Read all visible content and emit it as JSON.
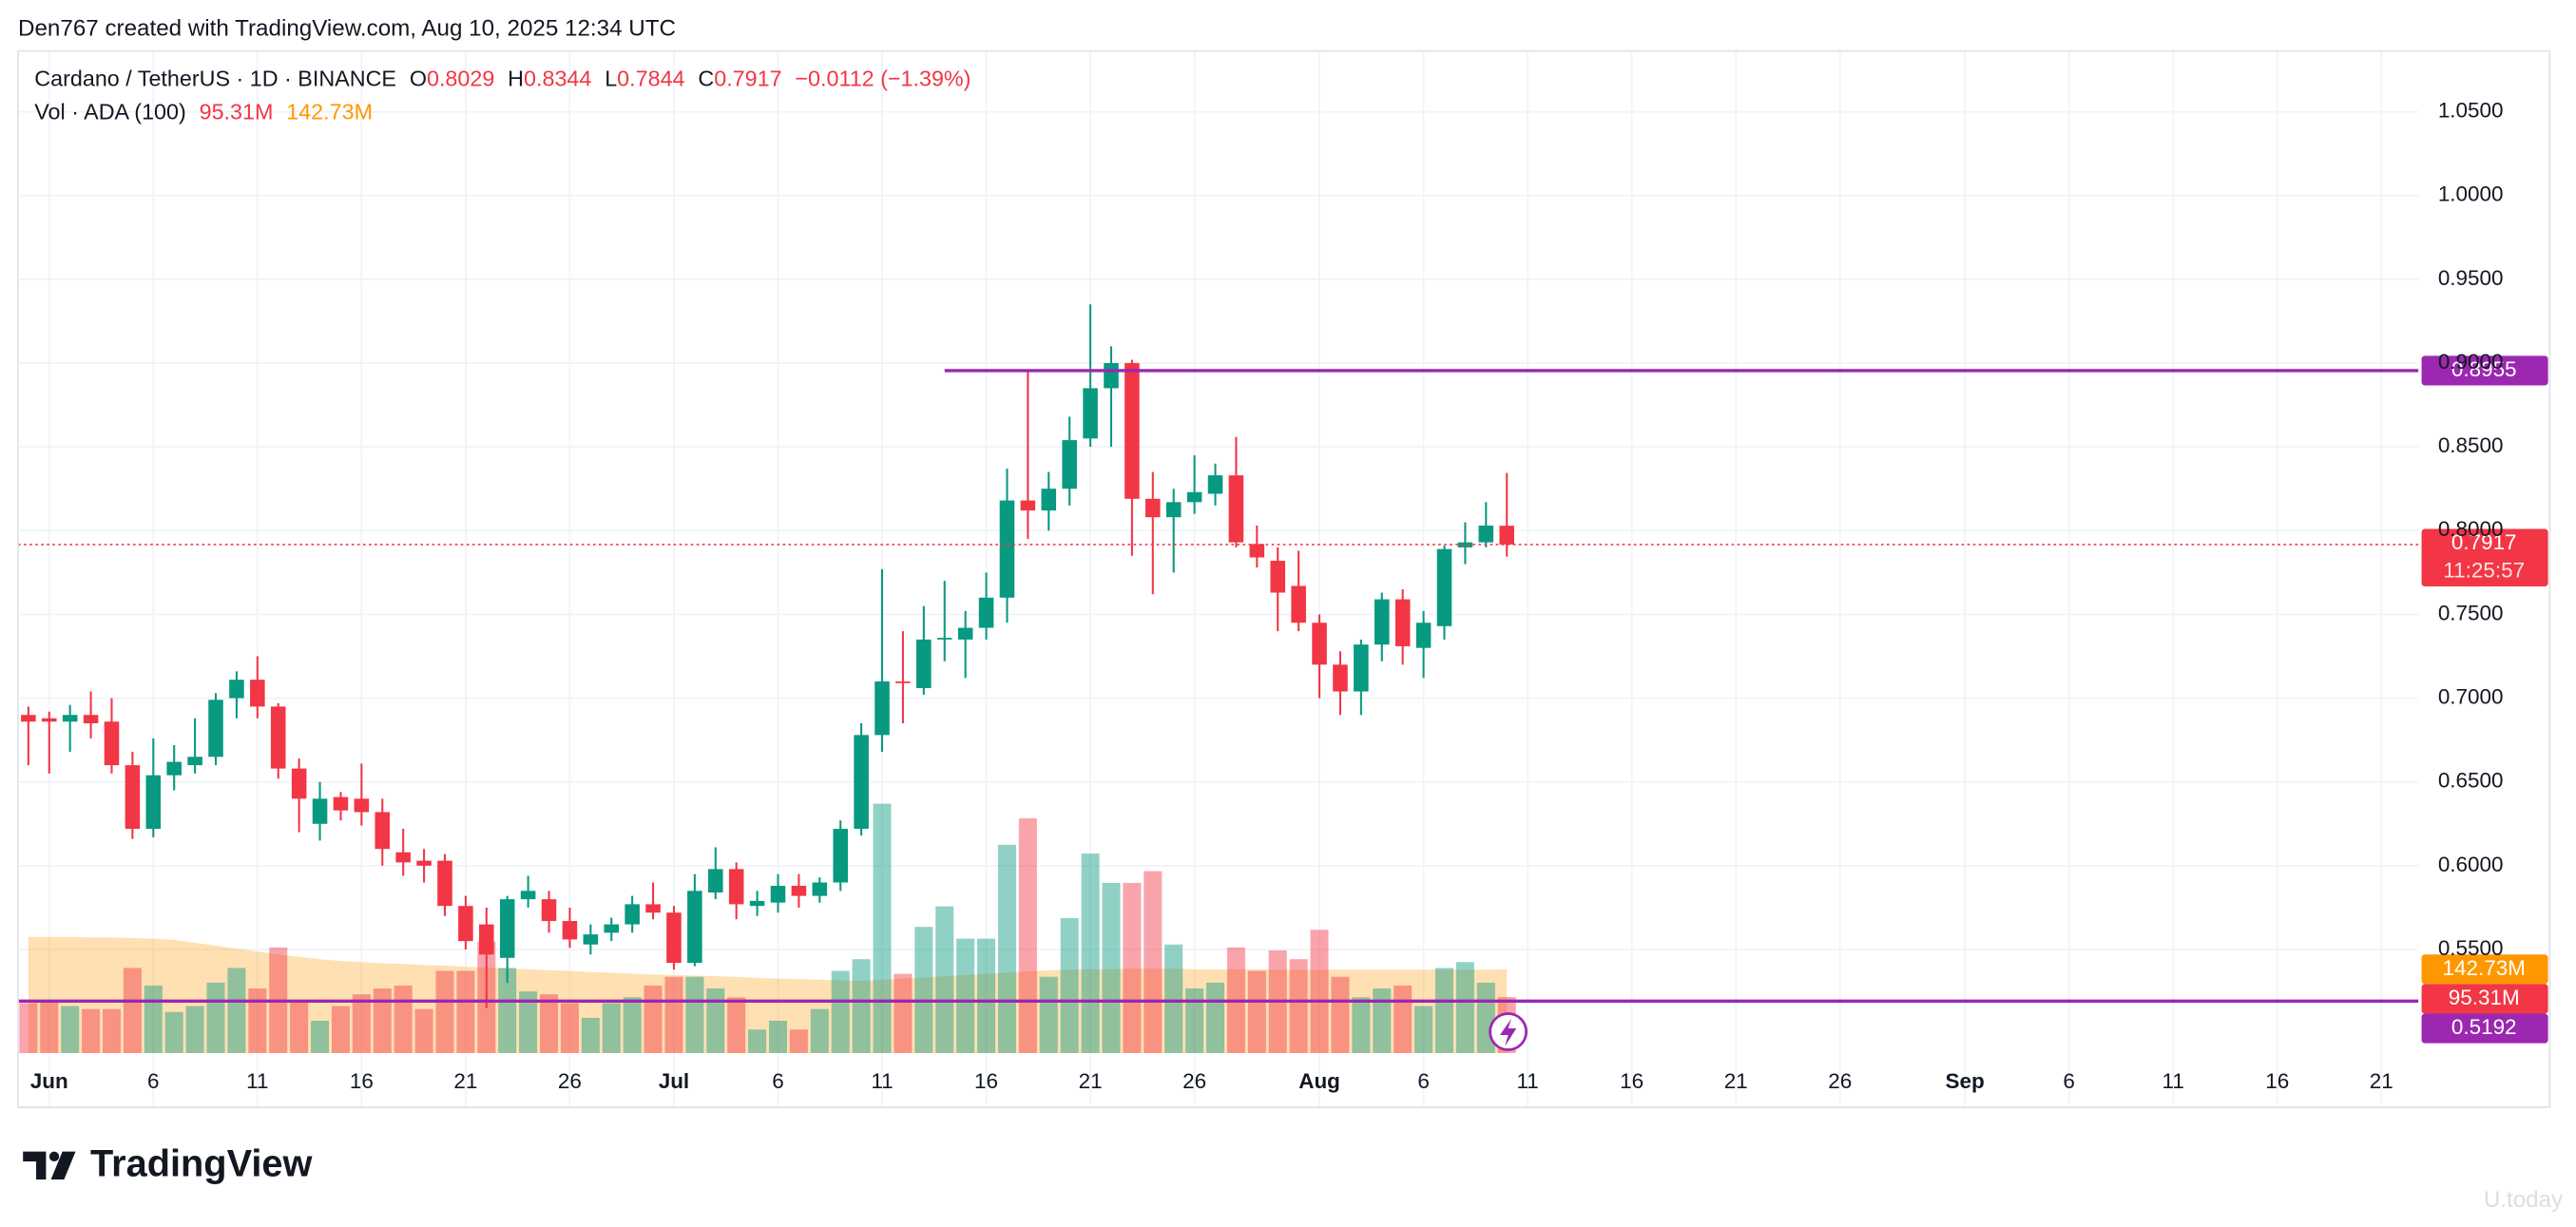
{
  "credit": "Den767 created with TradingView.com, Aug 10, 2025 12:34 UTC",
  "logo": "TradingView",
  "watermark": "U.today",
  "chart_data": {
    "type": "candlestick",
    "symbol": "Cardano / TetherUS · 1D · BINANCE",
    "ohlc_labels": [
      "O",
      "H",
      "L",
      "C"
    ],
    "change": "−0.0112 (−1.39%)",
    "x": [
      "May 31",
      "Jun 1",
      "Jun 2",
      "Jun 3",
      "Jun 4",
      "Jun 5",
      "Jun 6",
      "Jun 7",
      "Jun 8",
      "Jun 9",
      "Jun 10",
      "Jun 11",
      "Jun 12",
      "Jun 13",
      "Jun 14",
      "Jun 15",
      "Jun 16",
      "Jun 17",
      "Jun 18",
      "Jun 19",
      "Jun 20",
      "Jun 21",
      "Jun 22",
      "Jun 23",
      "Jun 24",
      "Jun 25",
      "Jun 26",
      "Jun 27",
      "Jun 28",
      "Jun 29",
      "Jun 30",
      "Jul 1",
      "Jul 2",
      "Jul 3",
      "Jul 4",
      "Jul 5",
      "Jul 6",
      "Jul 7",
      "Jul 8",
      "Jul 9",
      "Jul 10",
      "Jul 11",
      "Jul 12",
      "Jul 13",
      "Jul 14",
      "Jul 15",
      "Jul 16",
      "Jul 17",
      "Jul 18",
      "Jul 19",
      "Jul 20",
      "Jul 21",
      "Jul 22",
      "Jul 23",
      "Jul 24",
      "Jul 25",
      "Jul 26",
      "Jul 27",
      "Jul 28",
      "Jul 29",
      "Jul 30",
      "Jul 31",
      "Aug 1",
      "Aug 2",
      "Aug 3",
      "Aug 4",
      "Aug 5",
      "Aug 6",
      "Aug 7",
      "Aug 8",
      "Aug 9",
      "Aug 10"
    ],
    "open": [
      0.69,
      0.688,
      0.686,
      0.69,
      0.686,
      0.66,
      0.622,
      0.654,
      0.66,
      0.665,
      0.7,
      0.711,
      0.695,
      0.658,
      0.625,
      0.641,
      0.64,
      0.632,
      0.608,
      0.603,
      0.603,
      0.576,
      0.565,
      0.545,
      0.58,
      0.58,
      0.567,
      0.553,
      0.56,
      0.565,
      0.577,
      0.572,
      0.542,
      0.584,
      0.598,
      0.576,
      0.578,
      0.588,
      0.582,
      0.59,
      0.622,
      0.678,
      0.71,
      0.706,
      0.735,
      0.735,
      0.742,
      0.76,
      0.818,
      0.812,
      0.825,
      0.855,
      0.885,
      0.9,
      0.819,
      0.808,
      0.817,
      0.822,
      0.833,
      0.792,
      0.782,
      0.767,
      0.745,
      0.72,
      0.704,
      0.732,
      0.759,
      0.73,
      0.743,
      0.79,
      0.793,
      0.8029
    ],
    "high": [
      0.695,
      0.692,
      0.696,
      0.704,
      0.7,
      0.668,
      0.676,
      0.672,
      0.688,
      0.703,
      0.716,
      0.725,
      0.697,
      0.664,
      0.65,
      0.644,
      0.661,
      0.64,
      0.622,
      0.61,
      0.607,
      0.582,
      0.575,
      0.582,
      0.594,
      0.585,
      0.575,
      0.565,
      0.569,
      0.582,
      0.59,
      0.576,
      0.595,
      0.611,
      0.602,
      0.585,
      0.595,
      0.595,
      0.593,
      0.627,
      0.685,
      0.777,
      0.74,
      0.755,
      0.77,
      0.752,
      0.775,
      0.837,
      0.895,
      0.835,
      0.868,
      0.935,
      0.91,
      0.902,
      0.835,
      0.825,
      0.845,
      0.84,
      0.856,
      0.803,
      0.79,
      0.788,
      0.75,
      0.728,
      0.735,
      0.763,
      0.765,
      0.752,
      0.791,
      0.805,
      0.817,
      0.8344
    ],
    "low": [
      0.66,
      0.655,
      0.668,
      0.676,
      0.655,
      0.616,
      0.617,
      0.645,
      0.655,
      0.66,
      0.688,
      0.688,
      0.652,
      0.62,
      0.615,
      0.627,
      0.624,
      0.6,
      0.594,
      0.59,
      0.57,
      0.55,
      0.515,
      0.53,
      0.575,
      0.56,
      0.551,
      0.547,
      0.555,
      0.56,
      0.568,
      0.538,
      0.54,
      0.58,
      0.568,
      0.57,
      0.572,
      0.575,
      0.578,
      0.585,
      0.618,
      0.668,
      0.685,
      0.702,
      0.722,
      0.712,
      0.735,
      0.745,
      0.795,
      0.8,
      0.815,
      0.85,
      0.85,
      0.785,
      0.762,
      0.775,
      0.81,
      0.815,
      0.79,
      0.778,
      0.74,
      0.74,
      0.7,
      0.69,
      0.69,
      0.722,
      0.72,
      0.712,
      0.735,
      0.78,
      0.79,
      0.7844
    ],
    "close": [
      0.686,
      0.686,
      0.69,
      0.685,
      0.66,
      0.622,
      0.654,
      0.662,
      0.665,
      0.699,
      0.711,
      0.695,
      0.658,
      0.64,
      0.64,
      0.633,
      0.632,
      0.61,
      0.602,
      0.6,
      0.576,
      0.555,
      0.547,
      0.58,
      0.585,
      0.567,
      0.556,
      0.559,
      0.565,
      0.577,
      0.572,
      0.542,
      0.585,
      0.598,
      0.577,
      0.579,
      0.588,
      0.582,
      0.59,
      0.622,
      0.678,
      0.71,
      0.709,
      0.735,
      0.736,
      0.742,
      0.76,
      0.818,
      0.812,
      0.825,
      0.854,
      0.885,
      0.9,
      0.819,
      0.808,
      0.817,
      0.823,
      0.833,
      0.793,
      0.784,
      0.763,
      0.745,
      0.72,
      0.704,
      0.732,
      0.759,
      0.731,
      0.745,
      0.789,
      0.793,
      0.803,
      0.7917
    ],
    "up_color": "#089981",
    "down_color": "#f23645",
    "countdown": "11:25:57",
    "volume": {
      "name": "Vol · ADA (100)",
      "values": [
        85,
        90,
        80,
        75,
        75,
        145,
        115,
        70,
        80,
        120,
        145,
        110,
        180,
        90,
        55,
        80,
        100,
        110,
        115,
        75,
        140,
        140,
        190,
        145,
        105,
        100,
        85,
        60,
        85,
        95,
        115,
        130,
        130,
        110,
        95,
        40,
        55,
        40,
        75,
        140,
        160,
        425,
        135,
        215,
        250,
        195,
        195,
        355,
        400,
        130,
        230,
        340,
        290,
        290,
        310,
        185,
        110,
        120,
        180,
        140,
        175,
        160,
        210,
        130,
        95,
        110,
        115,
        80,
        145,
        155,
        120,
        95.31
      ],
      "last_label": "95.31M",
      "ma_values": [
        198,
        198,
        198,
        197,
        197,
        196,
        195,
        193,
        188,
        183,
        178,
        173,
        168,
        164,
        160,
        157,
        155,
        153,
        152,
        150,
        149,
        147,
        146,
        144,
        143,
        141,
        140,
        138,
        137,
        135,
        134,
        133,
        132,
        131,
        130,
        128,
        127,
        126,
        125,
        124,
        123,
        125,
        127,
        129,
        131,
        133,
        135,
        137,
        139,
        141,
        142,
        143,
        143,
        144,
        144,
        144,
        143,
        143,
        143,
        143,
        142,
        142,
        142,
        142,
        142,
        142,
        142,
        142,
        142,
        142,
        142,
        142.73
      ],
      "ma_last_label": "142.73M",
      "ma_color": "#ff9800",
      "ylim": [
        0,
        420
      ]
    },
    "levels": [
      {
        "value": 0.8955,
        "from": "Jul 14"
      },
      {
        "value": 0.5192
      }
    ],
    "level_color": "#9c27b0",
    "xlim": [
      "May 30",
      "Sep 23"
    ],
    "xticks": [
      {
        "value": "Jun 1",
        "label": "Jun"
      },
      {
        "value": "Jun 6",
        "label": "6"
      },
      {
        "value": "Jun 11",
        "label": "11"
      },
      {
        "value": "Jun 16",
        "label": "16"
      },
      {
        "value": "Jun 21",
        "label": "21"
      },
      {
        "value": "Jun 26",
        "label": "26"
      },
      {
        "value": "Jul 1",
        "label": "Jul"
      },
      {
        "value": "Jul 6",
        "label": "6"
      },
      {
        "value": "Jul 11",
        "label": "11"
      },
      {
        "value": "Jul 16",
        "label": "16"
      },
      {
        "value": "Jul 21",
        "label": "21"
      },
      {
        "value": "Jul 26",
        "label": "26"
      },
      {
        "value": "Aug 1",
        "label": "Aug"
      },
      {
        "value": "Aug 6",
        "label": "6"
      },
      {
        "value": "Aug 11",
        "label": "11"
      },
      {
        "value": "Aug 16",
        "label": "16"
      },
      {
        "value": "Aug 21",
        "label": "21"
      },
      {
        "value": "Aug 26",
        "label": "26"
      },
      {
        "value": "Sep 1",
        "label": "Sep"
      },
      {
        "value": "Sep 6",
        "label": "6"
      },
      {
        "value": "Sep 11",
        "label": "11"
      },
      {
        "value": "Sep 16",
        "label": "16"
      },
      {
        "value": "Sep 21",
        "label": "21"
      }
    ],
    "ylim": [
      0.4882,
      1.0863
    ],
    "yticks": [
      {
        "value": 0.55,
        "label": "0.5500"
      },
      {
        "value": 0.6,
        "label": "0.6000"
      },
      {
        "value": 0.65,
        "label": "0.6500"
      },
      {
        "value": 0.7,
        "label": "0.7000"
      },
      {
        "value": 0.75,
        "label": "0.7500"
      },
      {
        "value": 0.8,
        "label": "0.8000"
      },
      {
        "value": 0.85,
        "label": "0.8500"
      },
      {
        "value": 0.9,
        "label": "0.9000"
      },
      {
        "value": 0.95,
        "label": "0.9500"
      },
      {
        "value": 1.0,
        "label": "1.0000"
      },
      {
        "value": 1.05,
        "label": "1.0500"
      }
    ],
    "grid": true
  }
}
